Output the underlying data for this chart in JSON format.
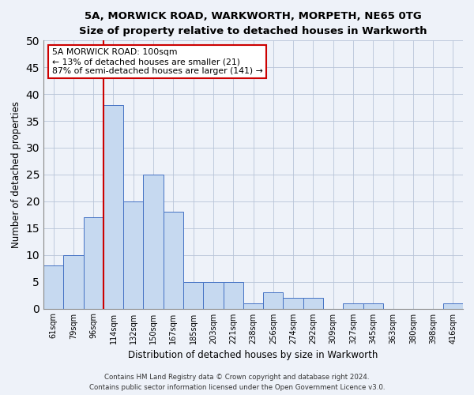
{
  "title1": "5A, MORWICK ROAD, WARKWORTH, MORPETH, NE65 0TG",
  "title2": "Size of property relative to detached houses in Warkworth",
  "xlabel": "Distribution of detached houses by size in Warkworth",
  "ylabel": "Number of detached properties",
  "categories": [
    "61sqm",
    "79sqm",
    "96sqm",
    "114sqm",
    "132sqm",
    "150sqm",
    "167sqm",
    "185sqm",
    "203sqm",
    "221sqm",
    "238sqm",
    "256sqm",
    "274sqm",
    "292sqm",
    "309sqm",
    "327sqm",
    "345sqm",
    "363sqm",
    "380sqm",
    "398sqm",
    "416sqm"
  ],
  "values": [
    8,
    10,
    17,
    38,
    20,
    25,
    18,
    5,
    5,
    5,
    1,
    3,
    2,
    2,
    0,
    1,
    1,
    0,
    0,
    0,
    1
  ],
  "bar_color": "#c6d9f0",
  "bar_edge_color": "#4472c4",
  "marker_index": 2,
  "marker_color": "#cc0000",
  "annotation_title": "5A MORWICK ROAD: 100sqm",
  "annotation_line1": "← 13% of detached houses are smaller (21)",
  "annotation_line2": "87% of semi-detached houses are larger (141) →",
  "annotation_box_color": "#ffffff",
  "annotation_box_edge": "#cc0000",
  "ylim": [
    0,
    50
  ],
  "yticks": [
    0,
    5,
    10,
    15,
    20,
    25,
    30,
    35,
    40,
    45,
    50
  ],
  "footer1": "Contains HM Land Registry data © Crown copyright and database right 2024.",
  "footer2": "Contains public sector information licensed under the Open Government Licence v3.0.",
  "bg_color": "#eef2f9",
  "grid_color": "#b8c4d8"
}
